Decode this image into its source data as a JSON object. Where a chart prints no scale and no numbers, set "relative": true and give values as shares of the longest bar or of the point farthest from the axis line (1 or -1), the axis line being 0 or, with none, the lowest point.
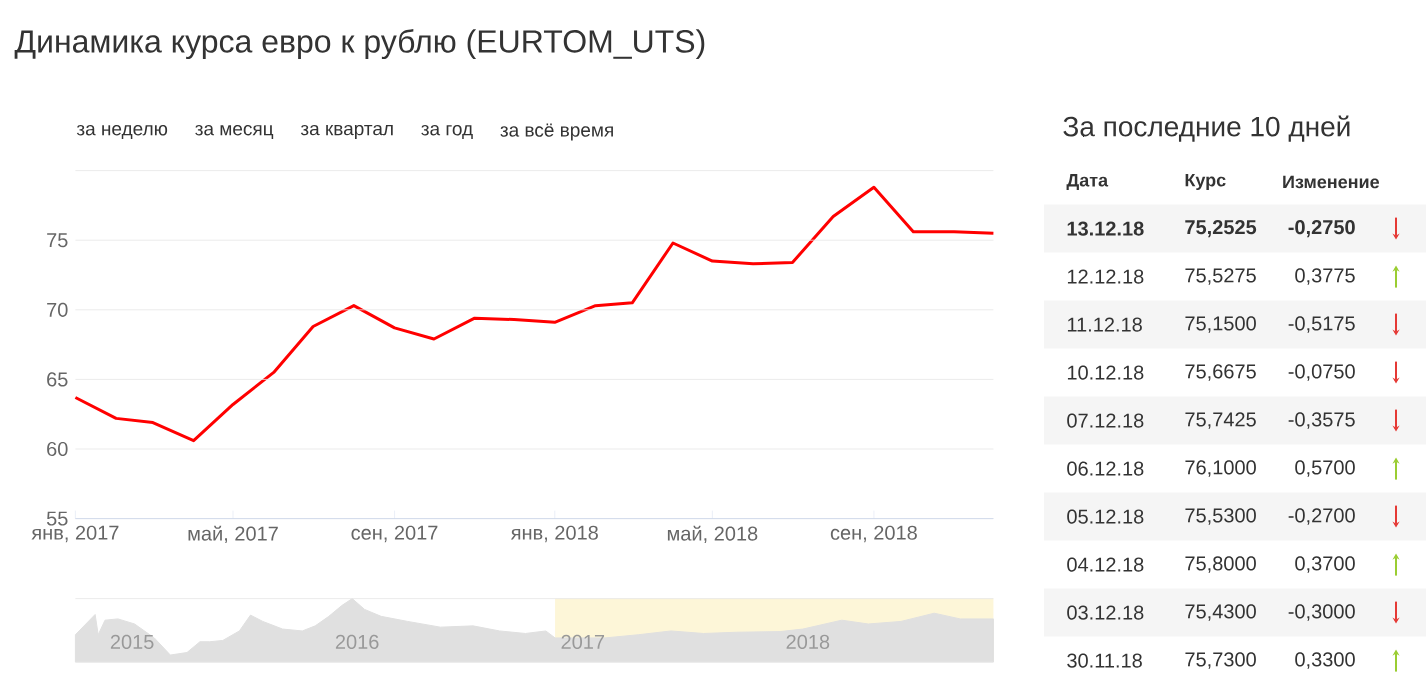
{
  "chart_data": [
    {
      "type": "line",
      "title": "Динамика курса евро к рублю (EURTOM_UTS)",
      "annotations": [
        "за неделю",
        "за месяц",
        "за квартал",
        "за год",
        "за всё время"
      ],
      "x": [
        "2017-01-01",
        "2017-02-01",
        "2017-03-01",
        "2017-04-01",
        "2017-05-01",
        "2017-06-01",
        "2017-07-01",
        "2017-08-01",
        "2017-09-01",
        "2017-10-01",
        "2017-11-01",
        "2017-12-01",
        "2018-01-01",
        "2018-02-01",
        "2018-03-01",
        "2018-04-01",
        "2018-05-01",
        "2018-06-01",
        "2018-07-01",
        "2018-08-01",
        "2018-09-01",
        "2018-10-01",
        "2018-11-01",
        "2018-12-01"
      ],
      "series": [
        {
          "color": "#ff0000",
          "values": [
            63.7,
            62.2,
            61.9,
            60.6,
            63.2,
            65.5,
            68.8,
            70.3,
            68.7,
            67.9,
            69.4,
            69.3,
            69.1,
            70.3,
            70.5,
            74.8,
            73.5,
            73.3,
            73.4,
            76.7,
            78.8,
            75.6,
            75.6,
            75.5
          ]
        }
      ],
      "xlim": [
        "2017-01-01",
        "2018-12-01"
      ],
      "xticks": [
        {
          "value": "2017-01-01",
          "label": "янв, 2017"
        },
        {
          "value": "2017-05-01",
          "label": "май, 2017"
        },
        {
          "value": "2017-09-01",
          "label": "сен, 2017"
        },
        {
          "value": "2018-01-01",
          "label": "янв, 2018"
        },
        {
          "value": "2018-05-01",
          "label": "май, 2018"
        },
        {
          "value": "2018-09-01",
          "label": "сен, 2018"
        }
      ],
      "ylim": [
        55,
        80
      ],
      "yticks": [
        55,
        60,
        65,
        70,
        75,
        {
          "value": 80,
          "label": null
        }
      ],
      "grid": "y"
    },
    {
      "type": "area",
      "relative": true,
      "x": [
        "2014-11-15",
        "2014-12-17",
        "2014-12-22",
        "2015-01-02",
        "2015-01-23",
        "2015-02-19",
        "2015-03-23",
        "2015-04-18",
        "2015-05-15",
        "2015-06-05",
        "2015-06-21",
        "2015-07-12",
        "2015-08-08",
        "2015-08-26",
        "2015-09-15",
        "2015-10-17",
        "2015-11-18",
        "2015-12-09",
        "2015-12-31",
        "2016-01-21",
        "2016-02-07",
        "2016-02-27",
        "2016-03-25",
        "2016-05-07",
        "2016-06-29",
        "2016-08-21",
        "2016-10-03",
        "2016-11-14",
        "2016-12-17",
        "2017-01-01",
        "2017-03-23",
        "2017-05-16",
        "2017-07-08",
        "2017-08-30",
        "2017-10-23",
        "2018-01-01",
        "2018-02-07",
        "2018-04-11",
        "2018-05-24",
        "2018-07-16",
        "2018-09-08",
        "2018-10-20",
        "2018-12-13"
      ],
      "series": [
        {
          "color": "#e0e0e0",
          "values": [
            0.43,
            0.75,
            0.43,
            0.66,
            0.68,
            0.6,
            0.38,
            0.11,
            0.15,
            0.32,
            0.32,
            0.34,
            0.49,
            0.74,
            0.64,
            0.52,
            0.49,
            0.57,
            0.72,
            0.89,
            1.0,
            0.83,
            0.72,
            0.64,
            0.55,
            0.57,
            0.49,
            0.45,
            0.49,
            0.38,
            0.38,
            0.43,
            0.49,
            0.45,
            0.47,
            0.48,
            0.52,
            0.66,
            0.6,
            0.64,
            0.77,
            0.68,
            0.68
          ]
        }
      ],
      "xlim": [
        "2014-11-15",
        "2018-12-13"
      ],
      "xticks": [
        {
          "value": "2015-02-15",
          "label": "2015"
        },
        {
          "value": "2016-02-15",
          "label": "2016"
        },
        {
          "value": "2017-02-15",
          "label": "2017"
        },
        {
          "value": "2018-02-15",
          "label": "2018"
        }
      ],
      "bands": [
        {
          "axis": "x",
          "from": "2017-01-01",
          "to": "2018-12-13",
          "color": "#fdf6d8"
        }
      ]
    },
    {
      "type": "other",
      "title": "За последние 10 дней",
      "annotations": [
        "Дата",
        "Курс",
        "Изменение",
        "13.12.18",
        "75,2525",
        "-0,2750",
        "12.12.18",
        "75,5275",
        "0,3775",
        "11.12.18",
        "75,1500",
        "-0,5175",
        "10.12.18",
        "75,6675",
        "-0,0750",
        "07.12.18",
        "75,7425",
        "-0,3575",
        "06.12.18",
        "76,1000",
        "0,5700",
        "05.12.18",
        "75,5300",
        "-0,2700",
        "04.12.18",
        "75,8000",
        "0,3700",
        "03.12.18",
        "75,4300",
        "-0,3000",
        "30.11.18",
        "75,7300",
        "0,3300"
      ]
    }
  ]
}
